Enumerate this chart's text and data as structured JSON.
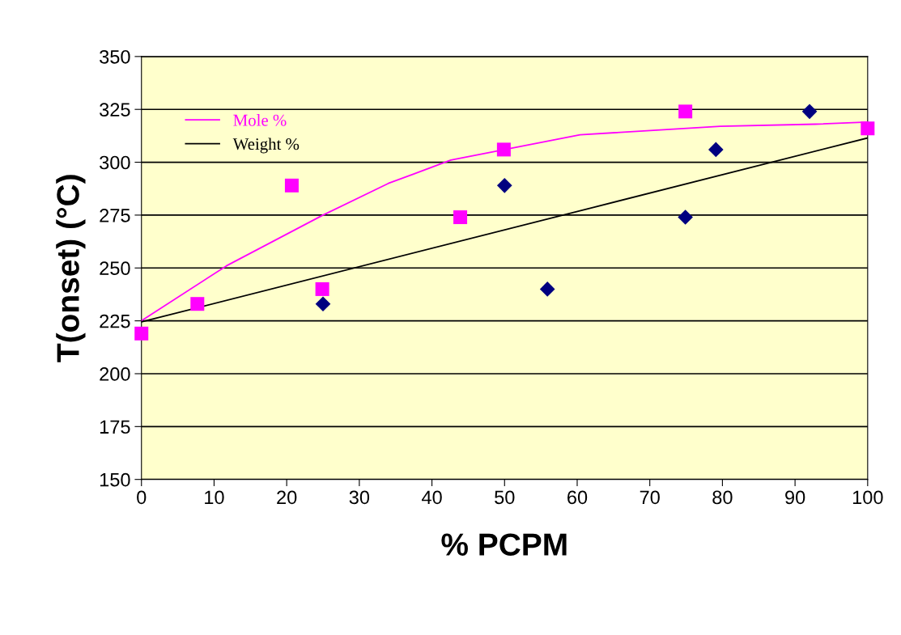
{
  "chart_data": {
    "type": "scatter",
    "xlabel": "% PCPM",
    "ylabel": "T(onset) (°C)",
    "xlim": [
      0,
      100
    ],
    "xticks": [
      0,
      10,
      20,
      30,
      40,
      50,
      60,
      70,
      80,
      90,
      100
    ],
    "ylim": [
      150,
      350
    ],
    "yticks": [
      150,
      175,
      200,
      225,
      250,
      275,
      300,
      325,
      350
    ],
    "grid": "y",
    "legend": "top left",
    "series": [
      {
        "marker": "square",
        "color": "#ff00ff",
        "x": [
          0,
          7.7,
          20.7,
          24.9,
          43.9,
          49.9,
          74.9,
          100
        ],
        "values": [
          219,
          233,
          289,
          240,
          274,
          306,
          324,
          316
        ]
      },
      {
        "marker": "diamond",
        "color": "#000080",
        "x": [
          25,
          50,
          55.9,
          74.9,
          79.1,
          92
        ],
        "values": [
          233,
          289,
          240,
          274,
          306,
          324
        ]
      },
      {
        "type": "line",
        "name": "Mole %",
        "color": "#ff00ff",
        "x": [
          0,
          11.7,
          25,
          34,
          42.6,
          50,
          60.4,
          79.7,
          92.8,
          100
        ],
        "values": [
          225,
          251,
          275,
          290,
          301,
          306,
          313,
          317,
          318,
          319
        ]
      },
      {
        "type": "line",
        "name": "Weight %",
        "color": "#000000",
        "x": [
          0,
          100
        ],
        "values": [
          224.5,
          311.5
        ]
      }
    ]
  }
}
